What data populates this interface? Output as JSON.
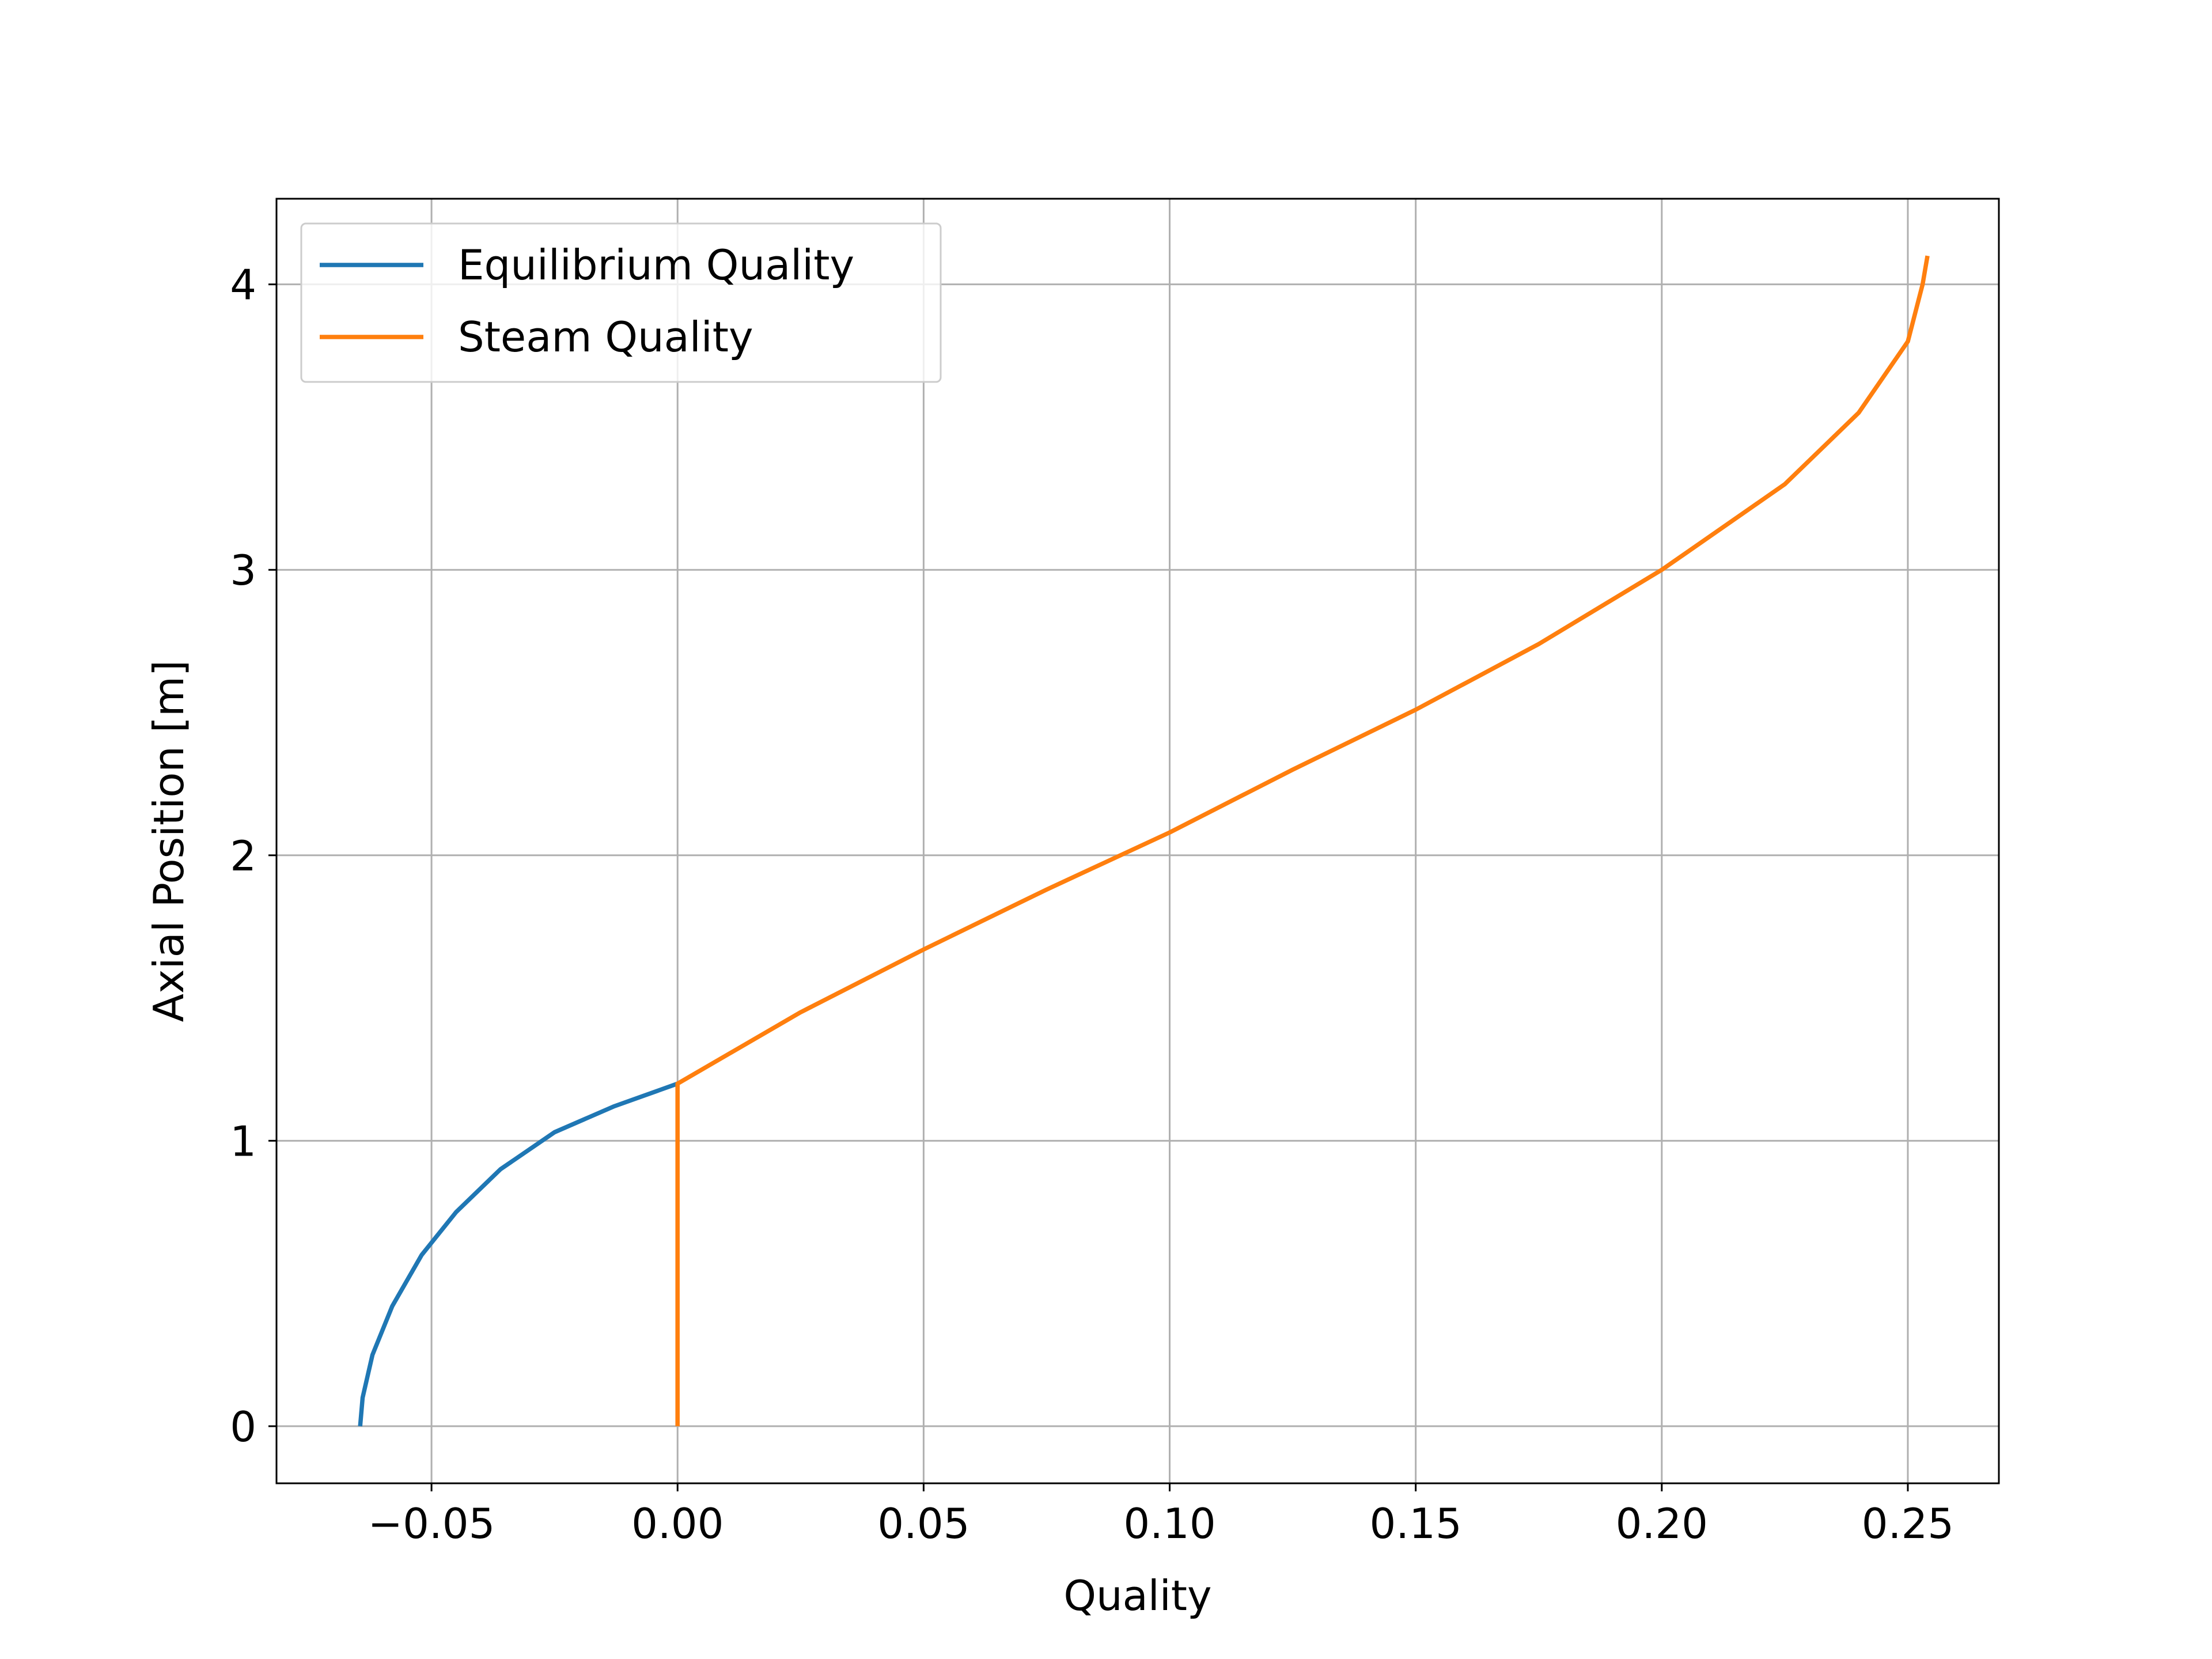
{
  "chart_data": {
    "type": "line",
    "title": "",
    "xlabel": "Quality",
    "ylabel": "Axial Position  [m]",
    "xlim": [
      -0.0815,
      0.2685
    ],
    "ylim": [
      -0.2,
      4.3
    ],
    "xticks": [
      {
        "value": -0.05,
        "label": "−0.05"
      },
      {
        "value": 0.0,
        "label": "0.00"
      },
      {
        "value": 0.05,
        "label": "0.05"
      },
      {
        "value": 0.1,
        "label": "0.10"
      },
      {
        "value": 0.15,
        "label": "0.15"
      },
      {
        "value": 0.2,
        "label": "0.20"
      },
      {
        "value": 0.25,
        "label": "0.25"
      }
    ],
    "yticks": [
      {
        "value": 0,
        "label": "0"
      },
      {
        "value": 1,
        "label": "1"
      },
      {
        "value": 2,
        "label": "2"
      },
      {
        "value": 3,
        "label": "3"
      },
      {
        "value": 4,
        "label": "4"
      }
    ],
    "grid": true,
    "legend_position": "top-left",
    "series": [
      {
        "name": "Equilibrium Quality",
        "color": "#1f77b4",
        "x": [
          -0.0645,
          -0.064,
          -0.062,
          -0.058,
          -0.052,
          -0.045,
          -0.036,
          -0.025,
          -0.013,
          0.0
        ],
        "y": [
          0.0,
          0.1,
          0.25,
          0.42,
          0.6,
          0.75,
          0.9,
          1.03,
          1.12,
          1.2
        ]
      },
      {
        "name": "Steam Quality",
        "color": "#ff7f0e",
        "x": [
          0.0,
          0.0,
          0.0,
          0.025,
          0.05,
          0.075,
          0.1,
          0.125,
          0.15,
          0.175,
          0.2,
          0.225,
          0.24,
          0.25,
          0.253,
          0.254
        ],
        "y": [
          0.0,
          0.6,
          1.2,
          1.45,
          1.67,
          1.88,
          2.08,
          2.3,
          2.51,
          2.74,
          3.0,
          3.3,
          3.55,
          3.8,
          4.0,
          4.1
        ]
      }
    ]
  }
}
